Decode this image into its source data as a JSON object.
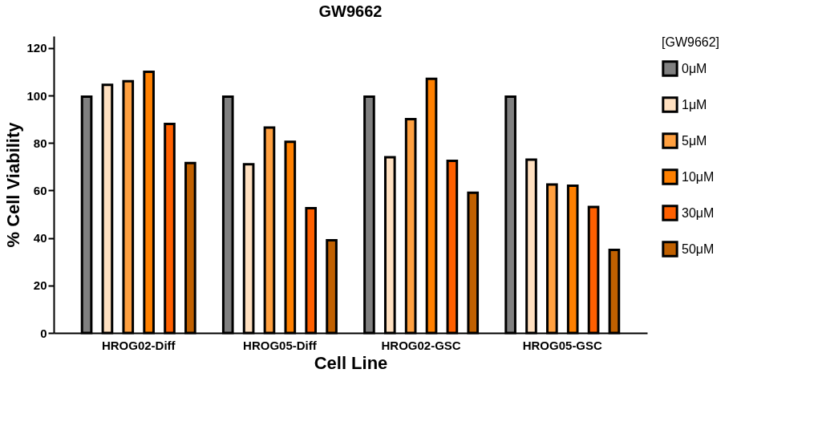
{
  "chart_data": {
    "type": "bar",
    "title": "GW9662",
    "xlabel": "Cell Line",
    "ylabel": "% Cell Viability",
    "legend_title": "[GW9662]",
    "categories": [
      "HROG02-Diff",
      "HROG05-Diff",
      "HROG02-GSC",
      "HROG05-GSC"
    ],
    "series": [
      {
        "name": "0μM",
        "color": "#808080",
        "values": [
          99.5,
          99.5,
          99.5,
          99.5
        ]
      },
      {
        "name": "1μM",
        "color": "#ffe0c0",
        "values": [
          104.5,
          71,
          74,
          73
        ]
      },
      {
        "name": "5μM",
        "color": "#ffa040",
        "values": [
          106,
          86.5,
          90,
          62.5
        ]
      },
      {
        "name": "10μM",
        "color": "#ff8000",
        "values": [
          110,
          80.5,
          107,
          62
        ]
      },
      {
        "name": "30μM",
        "color": "#ff6000",
        "values": [
          88,
          52.5,
          72.5,
          53
        ]
      },
      {
        "name": "50μM",
        "color": "#c06000",
        "values": [
          71.5,
          39,
          59,
          35
        ]
      }
    ],
    "ylim": [
      0,
      125
    ],
    "yticks": [
      0,
      20,
      40,
      60,
      80,
      100,
      120
    ],
    "grid": false,
    "legend": "top right"
  }
}
